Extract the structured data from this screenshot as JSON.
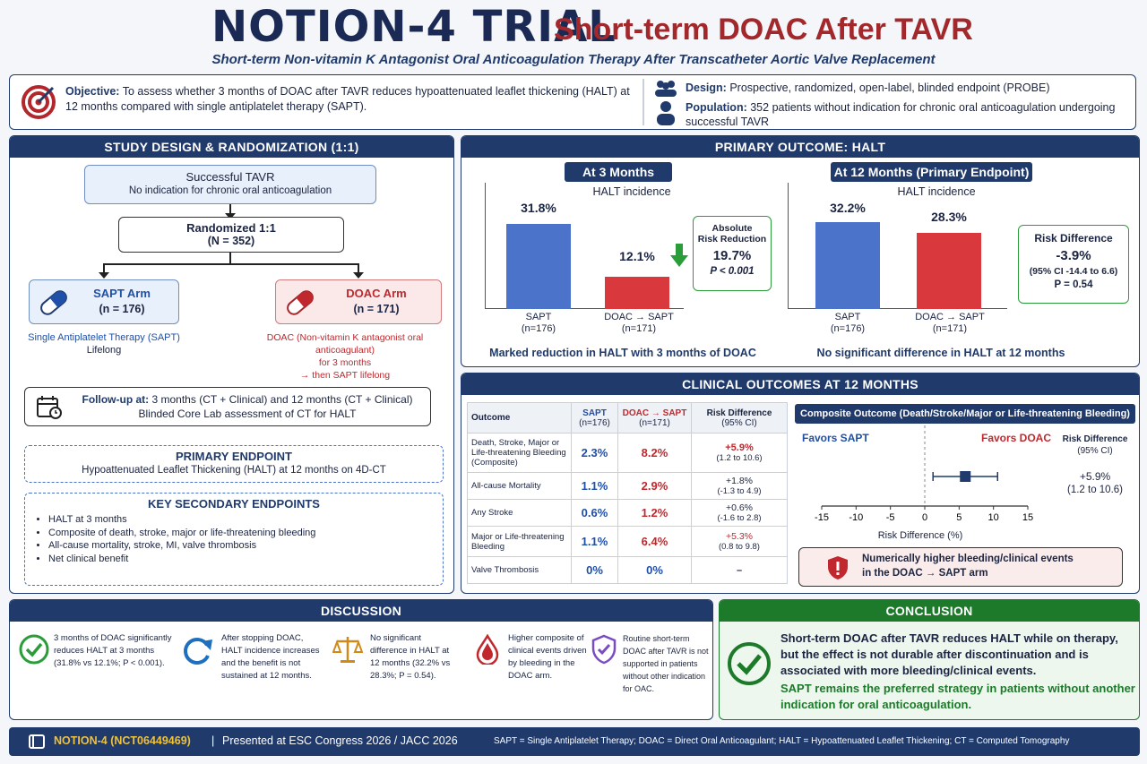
{
  "header": {
    "title": "NOTION-4 TRIAL",
    "title_right": "Short-term DOAC After TAVR",
    "subtitle": "Short-term Non-vitamin K Antagonist Oral Anticoagulation Therapy After Transcatheter Aortic Valve Replacement"
  },
  "objective": {
    "label": "Objective:",
    "text": "To assess whether 3 months of DOAC after TAVR reduces hypoattenuated leaflet thickening (HALT) at 12 months compared with single antiplatelet therapy (SAPT)."
  },
  "design": {
    "label": "Design:",
    "text": "Prospective, randomized, open-label, blinded endpoint (PROBE)",
    "pop_label": "Population:",
    "pop_text": "352 patients without indication for chronic oral anticoagulation undergoing successful TAVR"
  },
  "study": {
    "head": "STUDY DESIGN & RANDOMIZATION (1:1)",
    "tavr_title": "Successful TAVR",
    "tavr_sub": "No indication for chronic oral anticoagulation",
    "rand_title": "Randomized 1:1",
    "rand_n": "(N = 352)",
    "sapt_title": "SAPT Arm",
    "sapt_n": "(n = 176)",
    "sapt_desc1": "Single Antiplatelet Therapy (SAPT)",
    "sapt_desc2": "Lifelong",
    "doac_title": "DOAC Arm",
    "doac_n": "(n = 171)",
    "doac_desc1": "DOAC (Non-vitamin K antagonist oral anticoagulant)",
    "doac_desc2": "for 3 months",
    "doac_desc3": "→ then SAPT lifelong",
    "fu_label": "Follow-up at:",
    "fu_text": "3 months (CT + Clinical) and 12 months (CT + Clinical)",
    "fu_text2": "Blinded Core Lab assessment of CT for HALT",
    "pe_head": "PRIMARY ENDPOINT",
    "pe_text": "Hypoattenuated Leaflet Thickening (HALT) at 12 months on 4D-CT",
    "se_head": "KEY SECONDARY ENDPOINTS",
    "se_items": [
      "HALT at 3 months",
      "Composite of death, stroke, major or life-threatening bleeding",
      "All-cause mortality, stroke, MI, valve thrombosis",
      "Net clinical benefit"
    ]
  },
  "primary": {
    "head": "PRIMARY OUTCOME: HALT",
    "m3": {
      "chip": "At 3 Months",
      "label": "HALT incidence",
      "sapt_val": "31.8%",
      "doac_val": "12.1%",
      "sapt_lbl": "SAPT",
      "sapt_n": "(n=176)",
      "doac_lbl": "DOAC → SAPT",
      "doac_n": "(n=171)",
      "arr_title1": "Absolute",
      "arr_title2": "Risk Reduction",
      "arr_val": "19.7%",
      "arr_p": "P < 0.001",
      "caption": "Marked reduction in HALT with 3 months of DOAC"
    },
    "m12": {
      "chip": "At 12 Months (Primary Endpoint)",
      "label": "HALT incidence",
      "sapt_val": "32.2%",
      "doac_val": "28.3%",
      "sapt_lbl": "SAPT",
      "sapt_n": "(n=176)",
      "doac_lbl": "DOAC → SAPT",
      "doac_n": "(n=171)",
      "rd_title": "Risk Difference",
      "rd_val": "-3.9%",
      "rd_ci": "(95% CI -14.4 to 6.6)",
      "rd_p": "P = 0.54",
      "caption": "No significant difference in HALT at 12 months"
    }
  },
  "chart_data": [
    {
      "type": "bar",
      "title": "HALT incidence",
      "categories": [
        "SAPT (n=176)",
        "DOAC → SAPT (n=171)"
      ],
      "values": [
        31.8,
        12.1
      ],
      "ylim": [
        0,
        40
      ]
    },
    {
      "type": "bar",
      "title": "HALT incidence",
      "categories": [
        "SAPT (n=176)",
        "DOAC → SAPT (n=171)"
      ],
      "values": [
        32.2,
        28.3
      ],
      "ylim": [
        0,
        40
      ]
    },
    {
      "type": "scatter",
      "title": "Composite Outcome (Death/Stroke/Major or Life-threatening Bleeding)",
      "xlabel": "Risk Difference (%)",
      "x": [
        5.9
      ],
      "ci": [
        1.2,
        10.6
      ],
      "xlim": [
        -15,
        15
      ],
      "ticks": [
        "-15",
        "-10",
        "-5",
        "0",
        "5",
        "10",
        "15"
      ]
    }
  ],
  "clinical": {
    "head": "CLINICAL OUTCOMES AT 12 MONTHS",
    "cols": [
      "Outcome",
      "SAPT",
      "(n=176)",
      "DOAC → SAPT",
      "(n=171)",
      "Risk Difference",
      "(95% CI)"
    ],
    "rows": [
      {
        "name": "Death, Stroke, Major or Life-threatening Bleeding (Composite)",
        "sapt": "2.3%",
        "doac": "8.2%",
        "rd": "+5.9%",
        "ci": "(1.2 to 10.6)"
      },
      {
        "name": "All-cause Mortality",
        "sapt": "1.1%",
        "doac": "2.9%",
        "rd": "+1.8%",
        "ci": "(-1.3 to 4.9)"
      },
      {
        "name": "Any Stroke",
        "sapt": "0.6%",
        "doac": "1.2%",
        "rd": "+0.6%",
        "ci": "(-1.6 to 2.8)"
      },
      {
        "name": "Major or Life-threatening Bleeding",
        "sapt": "1.1%",
        "doac": "6.4%",
        "rd": "+5.3%",
        "ci": "(0.8 to 9.8)"
      },
      {
        "name": "Valve Thrombosis",
        "sapt": "0%",
        "doac": "0%",
        "rd": "–",
        "ci": ""
      }
    ],
    "forest_head": "Composite Outcome (Death/Stroke/Major or Life-threatening Bleeding)",
    "favors_sapt": "Favors SAPT",
    "favors_doac": "Favors DOAC",
    "rd_head1": "Risk Difference",
    "rd_head2": "(95% CI)",
    "rd_val": "+5.9%",
    "rd_ci": "(1.2 to 10.6)",
    "xlabel": "Risk Difference (%)",
    "warn1": "Numerically higher bleeding/clinical events",
    "warn2": "in the DOAC → SAPT arm"
  },
  "discussion": {
    "head": "DISCUSSION",
    "items": [
      {
        "icon": "check-icon",
        "text": "3 months of DOAC significantly reduces HALT at 3 months (31.8% vs 12.1%; P < 0.001)."
      },
      {
        "icon": "refresh-icon",
        "text": "After stopping DOAC, HALT incidence increases and the benefit is not sustained at 12 months."
      },
      {
        "icon": "scale-icon",
        "text": "No significant difference in HALT at 12 months (32.2% vs 28.3%; P = 0.54)."
      },
      {
        "icon": "blood-drop-icon",
        "text": "Higher composite of clinical events driven by bleeding in the DOAC arm."
      },
      {
        "icon": "shield-icon",
        "text": "Routine short-term DOAC after TAVR is not supported in patients without other indication for OAC."
      }
    ]
  },
  "conclusion": {
    "head": "CONCLUSION",
    "text1": "Short-term DOAC after TAVR reduces HALT while on therapy, but the effect is not durable after discontinuation and is associated with more bleeding/clinical events.",
    "text2": "SAPT remains the preferred strategy in patients without another indication for oral anticoagulation."
  },
  "footer": {
    "trial": "NOTION-4 (NCT06449469)",
    "sep": "|",
    "presented": "Presented at ESC Congress 2026 / JACC 2026",
    "abbrev": "SAPT = Single Antiplatelet Therapy; DOAC = Direct Oral Anticoagulant; HALT = Hypoattenuated Leaflet Thickening; CT = Computed Tomography"
  },
  "colors": {
    "navy": "#1f3a6b",
    "blue_bar": "#4a73c9",
    "red_bar": "#d9383d",
    "green": "#1c7a2a"
  }
}
